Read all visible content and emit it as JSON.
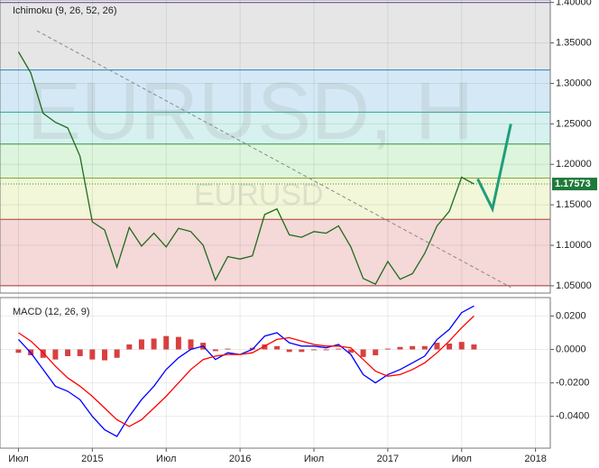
{
  "chart_data": [
    {
      "type": "line",
      "title": "Ichimoku (9, 26, 52, 26)",
      "watermark": "EURUSD, H",
      "watermark_sub": "EURUSD",
      "xlim": [
        -1.5,
        43.2
      ],
      "ylim": [
        1.041,
        1.403
      ],
      "xticks": [
        {
          "value": 0,
          "label": "Июл"
        },
        {
          "value": 6,
          "label": "2015"
        },
        {
          "value": 12,
          "label": "Июл"
        },
        {
          "value": 18,
          "label": "2016"
        },
        {
          "value": 24,
          "label": "Июл"
        },
        {
          "value": 30,
          "label": "2017"
        },
        {
          "value": 36,
          "label": "Июл"
        },
        {
          "value": 42,
          "label": "2018"
        }
      ],
      "yticks": [
        {
          "value": 1.4,
          "label": "1.40000"
        },
        {
          "value": 1.35,
          "label": "1.35000"
        },
        {
          "value": 1.3,
          "label": "1.30000"
        },
        {
          "value": 1.25,
          "label": "1.25000"
        },
        {
          "value": 1.2,
          "label": "1.20000"
        },
        {
          "value": 1.15,
          "label": "1.15000"
        },
        {
          "value": 1.1,
          "label": "1.10000"
        },
        {
          "value": 1.05,
          "label": "1.05000"
        }
      ],
      "levels": [
        1.4,
        1.3165,
        1.2645,
        1.225,
        1.183,
        1.132,
        1.05
      ],
      "level_colors": [
        "#e6e6e6",
        "#d4e9f5",
        "#d6f1ef",
        "#dcf5dc",
        "#f1f7d8",
        "#f5d8d8"
      ],
      "last_price": {
        "value": 1.17573,
        "label": "1.17573"
      },
      "x": [
        0,
        1,
        2,
        3,
        4,
        5,
        6,
        7,
        8,
        9,
        10,
        11,
        12,
        13,
        14,
        15,
        16,
        17,
        18,
        19,
        20,
        21,
        22,
        23,
        24,
        25,
        26,
        27,
        28,
        29,
        30,
        31,
        32,
        33,
        34,
        35,
        36,
        37
      ],
      "series": [
        {
          "name": "EURUSD",
          "color": "#1e6b1e",
          "values": [
            1.339,
            1.313,
            1.263,
            1.252,
            1.245,
            1.21,
            1.129,
            1.119,
            1.073,
            1.122,
            1.099,
            1.115,
            1.098,
            1.121,
            1.117,
            1.1,
            1.057,
            1.086,
            1.083,
            1.087,
            1.138,
            1.145,
            1.113,
            1.11,
            1.117,
            1.115,
            1.124,
            1.098,
            1.059,
            1.052,
            1.08,
            1.058,
            1.065,
            1.09,
            1.124,
            1.142,
            1.184,
            1.17573
          ]
        }
      ],
      "trend": {
        "color": "#888888",
        "x": [
          1.5,
          40
        ],
        "values": [
          1.365,
          1.048
        ]
      },
      "projection": {
        "color": "#1f9e7a",
        "x": [
          37.3,
          38.5,
          40
        ],
        "values": [
          1.182,
          1.145,
          1.25
        ]
      }
    },
    {
      "type": "macd",
      "title": "MACD (12, 26, 9)",
      "xlim": [
        -1.5,
        43.2
      ],
      "ylim": [
        -0.059,
        0.031
      ],
      "yticks": [
        {
          "value": 0.02,
          "label": "0.0200"
        },
        {
          "value": 0,
          "label": "0.0000"
        },
        {
          "value": -0.02,
          "label": "-0.0200"
        },
        {
          "value": -0.04,
          "label": "-0.0400"
        }
      ],
      "x": [
        0,
        1,
        2,
        3,
        4,
        5,
        6,
        7,
        8,
        9,
        10,
        11,
        12,
        13,
        14,
        15,
        16,
        17,
        18,
        19,
        20,
        21,
        22,
        23,
        24,
        25,
        26,
        27,
        28,
        29,
        30,
        31,
        32,
        33,
        34,
        35,
        36,
        37
      ],
      "histogram": {
        "color": "#cc0000",
        "values": [
          -0.002,
          -0.0035,
          -0.005,
          -0.006,
          -0.004,
          -0.004,
          -0.006,
          -0.0065,
          -0.005,
          0.003,
          0.006,
          0.0065,
          0.008,
          0.0075,
          0.006,
          0.004,
          -0.001,
          0.0005,
          0,
          0.001,
          0.003,
          0.002,
          -0.0015,
          -0.0015,
          -0.0005,
          -0.0005,
          0.0005,
          -0.002,
          -0.0045,
          -0.0035,
          0.0005,
          0.0015,
          0.002,
          0.002,
          0.004,
          0.0035,
          0.0045,
          0.003
        ]
      },
      "series": [
        {
          "name": "MACD",
          "color": "#0000ff",
          "values": [
            0.006,
            -0.002,
            -0.012,
            -0.022,
            -0.025,
            -0.03,
            -0.04,
            -0.048,
            -0.052,
            -0.04,
            -0.03,
            -0.022,
            -0.012,
            -0.005,
            0,
            0.002,
            -0.006,
            -0.002,
            -0.003,
            0,
            0.008,
            0.01,
            0.004,
            0.002,
            0.002,
            0.001,
            0.003,
            -0.003,
            -0.015,
            -0.02,
            -0.015,
            -0.012,
            -0.008,
            -0.004,
            0.006,
            0.012,
            0.022,
            0.026
          ]
        },
        {
          "name": "Signal",
          "color": "#ff0000",
          "values": [
            0.01,
            0.005,
            -0.002,
            -0.01,
            -0.017,
            -0.022,
            -0.028,
            -0.035,
            -0.042,
            -0.046,
            -0.042,
            -0.035,
            -0.028,
            -0.02,
            -0.012,
            -0.006,
            -0.004,
            -0.003,
            -0.003,
            -0.002,
            0.002,
            0.006,
            0.007,
            0.005,
            0.003,
            0.002,
            0.002,
            0.001,
            -0.006,
            -0.013,
            -0.016,
            -0.015,
            -0.012,
            -0.008,
            -0.002,
            0.005,
            0.013,
            0.02
          ]
        }
      ]
    }
  ]
}
